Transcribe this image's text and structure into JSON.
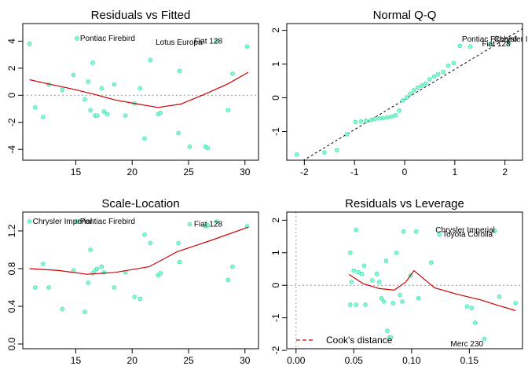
{
  "chart_data": [
    {
      "id": "rvf",
      "type": "scatter",
      "title": "Residuals vs Fitted",
      "xlim": [
        10.3,
        31.2
      ],
      "ylim": [
        -4.8,
        5.3
      ],
      "xticks": [
        15,
        20,
        25,
        30
      ],
      "yticks": [
        -4,
        -2,
        0,
        2,
        4
      ],
      "hline": 0,
      "points": [
        [
          10.9,
          3.8
        ],
        [
          11.4,
          -0.9
        ],
        [
          12.1,
          -1.6
        ],
        [
          12.6,
          0.8
        ],
        [
          13.8,
          0.4
        ],
        [
          14.8,
          1.5
        ],
        [
          15.1,
          4.2
        ],
        [
          15.8,
          -0.3
        ],
        [
          16.1,
          1.0
        ],
        [
          16.3,
          -1.1
        ],
        [
          16.5,
          2.4
        ],
        [
          16.7,
          -1.5
        ],
        [
          16.9,
          -1.5
        ],
        [
          17.3,
          0.5
        ],
        [
          17.5,
          -1.2
        ],
        [
          17.8,
          -1.4
        ],
        [
          18.4,
          0.8
        ],
        [
          19.4,
          -1.5
        ],
        [
          20.2,
          -0.6
        ],
        [
          20.7,
          0.5
        ],
        [
          21.1,
          -3.2
        ],
        [
          21.6,
          2.6
        ],
        [
          22.3,
          -1.4
        ],
        [
          22.5,
          -1.3
        ],
        [
          24.1,
          -2.8
        ],
        [
          24.2,
          1.8
        ],
        [
          25.1,
          -3.8
        ],
        [
          26.5,
          -3.8
        ],
        [
          26.7,
          -3.9
        ],
        [
          27.5,
          4.0
        ],
        [
          28.5,
          -1.1
        ],
        [
          28.9,
          1.6
        ],
        [
          30.2,
          3.6
        ]
      ],
      "smooth": [
        [
          10.9,
          1.15
        ],
        [
          12.5,
          0.85
        ],
        [
          14.5,
          0.5
        ],
        [
          16.5,
          0.1
        ],
        [
          18.5,
          -0.35
        ],
        [
          20.5,
          -0.65
        ],
        [
          22.3,
          -0.9
        ],
        [
          24.3,
          -0.65
        ],
        [
          26.5,
          0.1
        ],
        [
          28.5,
          0.85
        ],
        [
          30.3,
          1.7
        ]
      ],
      "labels": [
        {
          "text": "Pontiac Firebird",
          "x": 15.1,
          "y": 4.2
        },
        {
          "text": "Lotus Europa",
          "x": 21.8,
          "y": 3.9
        },
        {
          "text": "Fiat 128",
          "x": 25.2,
          "y": 4.0
        }
      ]
    },
    {
      "id": "qq",
      "type": "scatter",
      "title": "Normal Q-Q",
      "xlim": [
        -2.35,
        2.35
      ],
      "ylim": [
        -1.85,
        2.2
      ],
      "xticks": [
        -2,
        -1,
        0,
        1,
        2
      ],
      "yticks": [
        -1,
        0,
        1,
        2
      ],
      "qqline": [
        [
          -2.35,
          -2.15
        ],
        [
          2.35,
          2.05
        ]
      ],
      "points": [
        [
          -2.15,
          -1.68
        ],
        [
          -1.6,
          -1.62
        ],
        [
          -1.35,
          -1.55
        ],
        [
          -1.15,
          -1.08
        ],
        [
          -0.98,
          -0.72
        ],
        [
          -0.87,
          -0.7
        ],
        [
          -0.77,
          -0.68
        ],
        [
          -0.67,
          -0.66
        ],
        [
          -0.59,
          -0.63
        ],
        [
          -0.5,
          -0.61
        ],
        [
          -0.42,
          -0.6
        ],
        [
          -0.34,
          -0.58
        ],
        [
          -0.26,
          -0.56
        ],
        [
          -0.18,
          -0.52
        ],
        [
          -0.11,
          -0.38
        ],
        [
          -0.04,
          -0.08
        ],
        [
          0.04,
          0.01
        ],
        [
          0.11,
          0.12
        ],
        [
          0.18,
          0.22
        ],
        [
          0.26,
          0.3
        ],
        [
          0.34,
          0.36
        ],
        [
          0.42,
          0.42
        ],
        [
          0.5,
          0.55
        ],
        [
          0.59,
          0.63
        ],
        [
          0.67,
          0.7
        ],
        [
          0.77,
          0.77
        ],
        [
          0.87,
          0.95
        ],
        [
          0.98,
          1.03
        ],
        [
          1.1,
          1.54
        ],
        [
          1.31,
          1.52
        ],
        [
          1.7,
          1.58
        ],
        [
          2.08,
          1.62
        ]
      ],
      "labels": [
        {
          "text": "Pontiac Firebird",
          "x": 1.08,
          "y": 1.73
        },
        {
          "text": "Chrysler Imperial",
          "x": 1.72,
          "y": 1.73
        },
        {
          "text": "Fiat 128",
          "x": 1.48,
          "y": 1.6
        }
      ]
    },
    {
      "id": "sl",
      "type": "scatter",
      "title": "Scale-Location",
      "xlim": [
        10.3,
        31.2
      ],
      "ylim": [
        -0.05,
        1.4
      ],
      "xticks": [
        15,
        20,
        25,
        30
      ],
      "yticks": [
        0.0,
        0.4,
        0.8,
        1.2
      ],
      "points": [
        [
          10.9,
          1.3
        ],
        [
          11.4,
          0.6
        ],
        [
          12.1,
          0.85
        ],
        [
          12.6,
          0.6
        ],
        [
          13.8,
          0.37
        ],
        [
          14.8,
          0.78
        ],
        [
          15.1,
          1.3
        ],
        [
          15.8,
          0.34
        ],
        [
          16.1,
          0.65
        ],
        [
          16.3,
          1.0
        ],
        [
          16.5,
          0.75
        ],
        [
          16.7,
          0.78
        ],
        [
          16.9,
          0.8
        ],
        [
          17.3,
          0.82
        ],
        [
          17.5,
          0.76
        ],
        [
          18.4,
          0.6
        ],
        [
          19.4,
          0.76
        ],
        [
          20.2,
          0.5
        ],
        [
          20.7,
          0.48
        ],
        [
          21.1,
          1.16
        ],
        [
          21.6,
          1.07
        ],
        [
          22.3,
          0.73
        ],
        [
          22.5,
          0.75
        ],
        [
          24.1,
          1.07
        ],
        [
          24.2,
          0.87
        ],
        [
          25.1,
          1.27
        ],
        [
          26.5,
          1.25
        ],
        [
          26.7,
          1.26
        ],
        [
          27.5,
          1.3
        ],
        [
          28.5,
          0.68
        ],
        [
          28.9,
          0.82
        ],
        [
          30.2,
          1.25
        ]
      ],
      "smooth": [
        [
          10.9,
          0.8
        ],
        [
          13.5,
          0.78
        ],
        [
          16,
          0.74
        ],
        [
          18.5,
          0.76
        ],
        [
          21.5,
          0.82
        ],
        [
          24,
          0.98
        ],
        [
          27,
          1.1
        ],
        [
          30.3,
          1.24
        ]
      ],
      "labels": [
        {
          "text": "Chrysler Imperial",
          "x": 10.9,
          "y": 1.3
        },
        {
          "text": "Pontiac Firebird",
          "x": 15.1,
          "y": 1.3
        },
        {
          "text": "Fiat 128",
          "x": 25.2,
          "y": 1.27
        }
      ]
    },
    {
      "id": "rvl",
      "type": "scatter",
      "title": "Residuals vs Leverage",
      "xlim": [
        -0.008,
        0.196
      ],
      "ylim": [
        -1.95,
        2.25
      ],
      "xticks": [
        0.0,
        0.05,
        0.1,
        0.15
      ],
      "yticks": [
        -2,
        -1,
        0,
        1,
        2
      ],
      "hline": 0,
      "vline": 0,
      "points": [
        [
          0.047,
          1.0
        ],
        [
          0.047,
          -0.6
        ],
        [
          0.048,
          0.1
        ],
        [
          0.05,
          0.45
        ],
        [
          0.052,
          -0.6
        ],
        [
          0.052,
          1.7
        ],
        [
          0.054,
          0.4
        ],
        [
          0.057,
          0.35
        ],
        [
          0.059,
          0.6
        ],
        [
          0.06,
          -0.6
        ],
        [
          0.066,
          0.15
        ],
        [
          0.07,
          0.35
        ],
        [
          0.072,
          0.1
        ],
        [
          0.074,
          -0.4
        ],
        [
          0.076,
          -0.5
        ],
        [
          0.078,
          0.75
        ],
        [
          0.079,
          -1.4
        ],
        [
          0.081,
          -1.6
        ],
        [
          0.082,
          -1.6
        ],
        [
          0.084,
          -0.55
        ],
        [
          0.087,
          1.0
        ],
        [
          0.09,
          -0.3
        ],
        [
          0.092,
          -0.5
        ],
        [
          0.093,
          1.65
        ],
        [
          0.099,
          0.3
        ],
        [
          0.104,
          1.65
        ],
        [
          0.106,
          -0.4
        ],
        [
          0.117,
          0.7
        ],
        [
          0.124,
          1.56
        ],
        [
          0.148,
          -0.65
        ],
        [
          0.152,
          -0.7
        ],
        [
          0.155,
          -1.15
        ],
        [
          0.163,
          -1.65
        ],
        [
          0.172,
          1.67
        ],
        [
          0.176,
          -0.35
        ],
        [
          0.19,
          -0.55
        ]
      ],
      "smooth": [
        [
          0.046,
          0.33
        ],
        [
          0.058,
          0.05
        ],
        [
          0.072,
          -0.1
        ],
        [
          0.085,
          -0.15
        ],
        [
          0.095,
          0.1
        ],
        [
          0.102,
          0.45
        ],
        [
          0.12,
          -0.08
        ],
        [
          0.14,
          -0.28
        ],
        [
          0.16,
          -0.45
        ],
        [
          0.175,
          -0.62
        ],
        [
          0.19,
          -0.78
        ]
      ],
      "labels": [
        {
          "text": "Chrysler Imperial",
          "x": 0.118,
          "y": 1.7
        },
        {
          "text": "Toyota Corolla",
          "x": 0.124,
          "y": 1.56
        },
        {
          "text": "Merc 230",
          "x": 0.131,
          "y": -1.8
        }
      ],
      "legend": {
        "text": "Cook's distance",
        "placement": "bottom-left"
      }
    }
  ]
}
